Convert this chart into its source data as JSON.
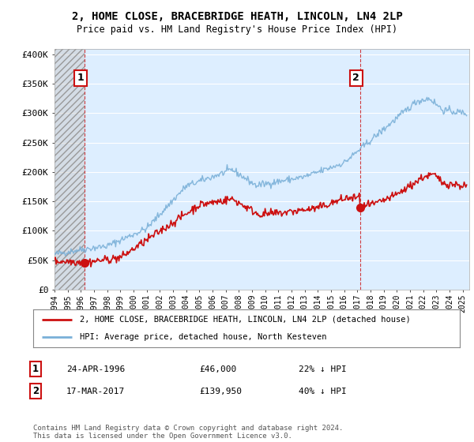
{
  "title": "2, HOME CLOSE, BRACEBRIDGE HEATH, LINCOLN, LN4 2LP",
  "subtitle": "Price paid vs. HM Land Registry's House Price Index (HPI)",
  "ylim": [
    0,
    410000
  ],
  "yticks": [
    0,
    50000,
    100000,
    150000,
    200000,
    250000,
    300000,
    350000,
    400000
  ],
  "ytick_labels": [
    "£0",
    "£50K",
    "£100K",
    "£150K",
    "£200K",
    "£250K",
    "£300K",
    "£350K",
    "£400K"
  ],
  "hpi_color": "#7ab0d8",
  "price_color": "#cc1111",
  "point1_year": 1996.3,
  "point1_value": 46000,
  "point2_year": 2017.2,
  "point2_value": 139950,
  "legend_line1": "2, HOME CLOSE, BRACEBRIDGE HEATH, LINCOLN, LN4 2LP (detached house)",
  "legend_line2": "HPI: Average price, detached house, North Kesteven",
  "footer_rows": [
    {
      "num": "1",
      "date": "24-APR-1996",
      "price": "£46,000",
      "pct": "22% ↓ HPI"
    },
    {
      "num": "2",
      "date": "17-MAR-2017",
      "price": "£139,950",
      "pct": "40% ↓ HPI"
    }
  ],
  "footer_text": "Contains HM Land Registry data © Crown copyright and database right 2024.\nThis data is licensed under the Open Government Licence v3.0.",
  "background_color": "#ffffff",
  "plot_bg_color": "#ddeeff",
  "grid_color": "#ffffff",
  "xlim_start": 1994,
  "xlim_end": 2025.5
}
